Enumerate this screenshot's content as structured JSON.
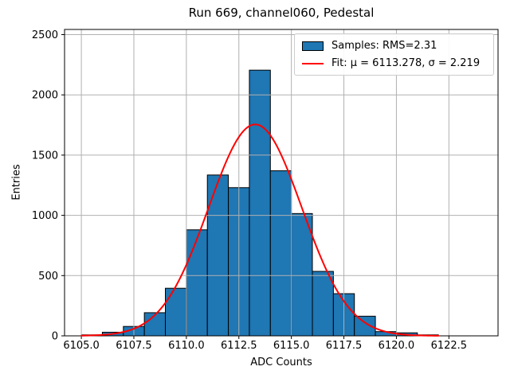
{
  "figure": {
    "title": "Run 669, channel060, Pedestal",
    "xlabel": "ADC Counts",
    "ylabel": "Entries"
  },
  "legend": {
    "samples_label": "Samples: RMS=2.31",
    "fit_label": "Fit: μ = 6113.278, σ = 2.219"
  },
  "chart_data": {
    "type": "bar",
    "subtype": "histogram",
    "title": "Run 669, channel060, Pedestal",
    "xlabel": "ADC Counts",
    "ylabel": "Entries",
    "bin_edges": [
      6105,
      6106,
      6107,
      6108,
      6109,
      6110,
      6111,
      6112,
      6113,
      6114,
      6115,
      6116,
      6117,
      6118,
      6119,
      6120,
      6121,
      6122
    ],
    "counts": [
      8,
      30,
      78,
      192,
      395,
      880,
      1335,
      1230,
      2205,
      1370,
      1015,
      535,
      350,
      163,
      35,
      25,
      8
    ],
    "fit": {
      "type": "gaussian",
      "mu": 6113.278,
      "sigma": 2.219,
      "amplitude": 1755,
      "x_range": [
        6105,
        6122
      ]
    },
    "xlim": [
      6104.2,
      6124.84
    ],
    "ylim": [
      0,
      2543
    ],
    "xticks": [
      6105.0,
      6107.5,
      6110.0,
      6112.5,
      6115.0,
      6117.5,
      6120.0,
      6122.5
    ],
    "xtick_labels": [
      "6105.0",
      "6107.5",
      "6110.0",
      "6112.5",
      "6115.0",
      "6117.5",
      "6120.0",
      "6122.5"
    ],
    "yticks": [
      0,
      500,
      1000,
      1500,
      2000,
      2500
    ],
    "ytick_labels": [
      "0",
      "500",
      "1000",
      "1500",
      "2000",
      "2500"
    ],
    "grid": true,
    "legend_position": "upper right",
    "colors": {
      "bar_fill": "#1f77b4",
      "bar_edge": "#000000",
      "fit_line": "#ff0000",
      "grid": "#b0b0b0",
      "axes": "#000000"
    },
    "legend_entries": [
      "Samples: RMS=2.31",
      "Fit: μ = 6113.278, σ = 2.219"
    ]
  }
}
